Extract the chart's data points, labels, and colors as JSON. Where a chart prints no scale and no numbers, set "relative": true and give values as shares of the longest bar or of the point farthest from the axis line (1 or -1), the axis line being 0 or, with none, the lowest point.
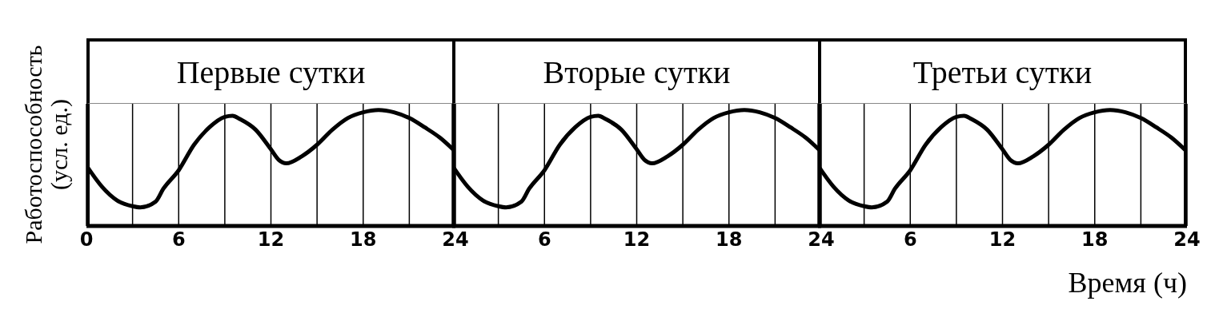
{
  "chart_data": [
    {
      "type": "line",
      "title": "Первые сутки",
      "ylabel": "Работоспособность\n(усл. ед.)",
      "relative": true,
      "grid": "x",
      "xlim": [
        0,
        24
      ],
      "xticks": [
        0,
        {
          "value": 3,
          "label": null
        },
        6,
        {
          "value": 9,
          "label": null
        },
        12,
        {
          "value": 15,
          "label": null
        },
        18,
        {
          "value": 21,
          "label": null
        },
        24
      ],
      "series": [
        {
          "color": "#000000",
          "x": [
            0,
            1,
            2,
            3,
            3.5,
            4.5,
            5,
            6,
            7,
            8,
            9,
            9.5,
            10,
            11,
            12,
            12.5,
            13,
            14,
            15,
            16,
            17,
            18,
            19,
            20,
            21,
            22,
            23,
            24
          ],
          "values": [
            0.52,
            0.34,
            0.22,
            0.17,
            0.16,
            0.21,
            0.32,
            0.48,
            0.7,
            0.85,
            0.94,
            0.95,
            0.92,
            0.83,
            0.66,
            0.57,
            0.54,
            0.6,
            0.7,
            0.83,
            0.93,
            0.98,
            1,
            0.98,
            0.93,
            0.85,
            0.76,
            0.64
          ]
        }
      ]
    },
    {
      "type": "line",
      "title": "Вторые сутки",
      "relative": true,
      "grid": "x",
      "xlim": [
        0,
        24
      ],
      "xticks": [
        {
          "value": 3,
          "label": null
        },
        6,
        {
          "value": 9,
          "label": null
        },
        12,
        {
          "value": 15,
          "label": null
        },
        18,
        {
          "value": 21,
          "label": null
        },
        24
      ],
      "series": [
        {
          "color": "#000000",
          "x": [
            0,
            1,
            2,
            3,
            3.5,
            4.5,
            5,
            6,
            7,
            8,
            9,
            9.5,
            10,
            11,
            12,
            12.5,
            13,
            14,
            15,
            16,
            17,
            18,
            19,
            20,
            21,
            22,
            23,
            24
          ],
          "values": [
            0.52,
            0.34,
            0.22,
            0.17,
            0.16,
            0.21,
            0.32,
            0.48,
            0.7,
            0.85,
            0.94,
            0.95,
            0.92,
            0.83,
            0.66,
            0.57,
            0.54,
            0.6,
            0.7,
            0.83,
            0.93,
            0.98,
            1,
            0.98,
            0.93,
            0.85,
            0.76,
            0.64
          ]
        }
      ]
    },
    {
      "type": "line",
      "title": "Третьи сутки",
      "xlabel": "Время (ч)",
      "relative": true,
      "grid": "x",
      "xlim": [
        0,
        24
      ],
      "xticks": [
        {
          "value": 3,
          "label": null
        },
        6,
        {
          "value": 9,
          "label": null
        },
        12,
        {
          "value": 15,
          "label": null
        },
        18,
        {
          "value": 21,
          "label": null
        },
        24
      ],
      "series": [
        {
          "color": "#000000",
          "x": [
            0,
            1,
            2,
            3,
            3.5,
            4.5,
            5,
            6,
            7,
            8,
            9,
            9.5,
            10,
            11,
            12,
            12.5,
            13,
            14,
            15,
            16,
            17,
            18,
            19,
            20,
            21,
            22,
            23,
            24
          ],
          "values": [
            0.52,
            0.34,
            0.22,
            0.17,
            0.16,
            0.21,
            0.32,
            0.48,
            0.7,
            0.85,
            0.94,
            0.95,
            0.92,
            0.83,
            0.66,
            0.57,
            0.54,
            0.6,
            0.7,
            0.83,
            0.93,
            0.98,
            1,
            0.98,
            0.93,
            0.85,
            0.76,
            0.64
          ]
        }
      ]
    }
  ]
}
